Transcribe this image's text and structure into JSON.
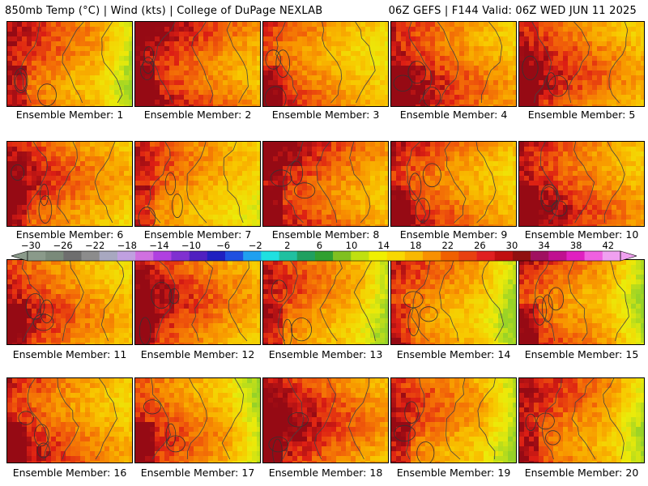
{
  "header": {
    "left": "850mb Temp (°C) | Wind (kts) | College of DuPage NEXLAB",
    "right": "06Z GEFS | F144 Valid: 06Z WED JUN 11 2025"
  },
  "panel_label_prefix": "Ensemble Member: ",
  "members": [
    {
      "id": 1,
      "label": "Ensemble Member: 1",
      "warmth": 0.62,
      "cool_east": true
    },
    {
      "id": 2,
      "label": "Ensemble Member: 2",
      "warmth": 0.78,
      "cool_east": false
    },
    {
      "id": 3,
      "label": "Ensemble Member: 3",
      "warmth": 0.6,
      "cool_east": false
    },
    {
      "id": 4,
      "label": "Ensemble Member: 4",
      "warmth": 0.72,
      "cool_east": false
    },
    {
      "id": 5,
      "label": "Ensemble Member: 5",
      "warmth": 0.7,
      "cool_east": false
    },
    {
      "id": 6,
      "label": "Ensemble Member: 6",
      "warmth": 0.66,
      "cool_east": false
    },
    {
      "id": 7,
      "label": "Ensemble Member: 7",
      "warmth": 0.55,
      "cool_east": false
    },
    {
      "id": 8,
      "label": "Ensemble Member: 8",
      "warmth": 0.75,
      "cool_east": false
    },
    {
      "id": 9,
      "label": "Ensemble Member: 9",
      "warmth": 0.68,
      "cool_east": false
    },
    {
      "id": 10,
      "label": "Ensemble Member: 10",
      "warmth": 0.74,
      "cool_east": false
    },
    {
      "id": 11,
      "label": "Ensemble Member: 11",
      "warmth": 0.64,
      "cool_east": false
    },
    {
      "id": 12,
      "label": "Ensemble Member: 12",
      "warmth": 0.7,
      "cool_east": false
    },
    {
      "id": 13,
      "label": "Ensemble Member: 13",
      "warmth": 0.58,
      "cool_east": true
    },
    {
      "id": 14,
      "label": "Ensemble Member: 14",
      "warmth": 0.56,
      "cool_east": true
    },
    {
      "id": 15,
      "label": "Ensemble Member: 15",
      "warmth": 0.62,
      "cool_east": true
    },
    {
      "id": 16,
      "label": "Ensemble Member: 16",
      "warmth": 0.68,
      "cool_east": false
    },
    {
      "id": 17,
      "label": "Ensemble Member: 17",
      "warmth": 0.6,
      "cool_east": true
    },
    {
      "id": 18,
      "label": "Ensemble Member: 18",
      "warmth": 0.76,
      "cool_east": false
    },
    {
      "id": 19,
      "label": "Ensemble Member: 19",
      "warmth": 0.58,
      "cool_east": true
    },
    {
      "id": 20,
      "label": "Ensemble Member: 20",
      "warmth": 0.64,
      "cool_east": true
    }
  ],
  "colorbar": {
    "tick_labels": [
      "−30",
      "−26",
      "−22",
      "−18",
      "−14",
      "−10",
      "−6",
      "−2",
      "2",
      "6",
      "10",
      "14",
      "18",
      "22",
      "26",
      "30",
      "34",
      "38",
      "42"
    ],
    "colors": [
      "#8a9a8a",
      "#7a8a7a",
      "#6e6e6e",
      "#8c8c8c",
      "#a8a8c0",
      "#c0a0e0",
      "#d070e0",
      "#b040e0",
      "#8030d0",
      "#5020c0",
      "#2020c0",
      "#2050e0",
      "#20a0f0",
      "#20e0e0",
      "#20c0a0",
      "#20a060",
      "#30a030",
      "#80c020",
      "#c0e010",
      "#f0f000",
      "#f8d800",
      "#f8b800",
      "#f89000",
      "#f06000",
      "#e84010",
      "#e02020",
      "#c01010",
      "#901010",
      "#a01060",
      "#c01090",
      "#e020c0",
      "#f060e0",
      "#f0a0f0"
    ]
  }
}
